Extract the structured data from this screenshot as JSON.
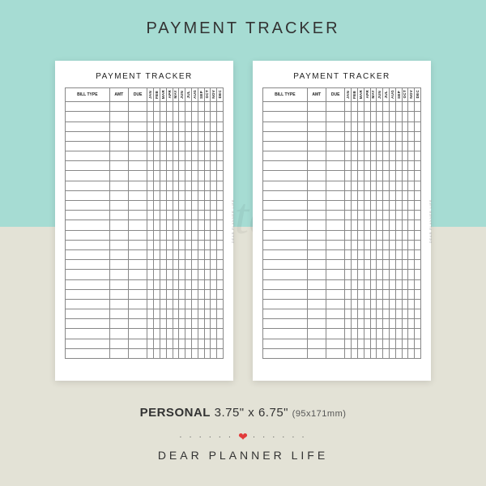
{
  "colors": {
    "bg_top": "#a6dcd3",
    "bg_bottom": "#e3e2d6",
    "card_bg": "#ffffff",
    "grid_line": "#888888",
    "text_dark": "#333333",
    "watermark": "rgba(0,0,0,0.05)",
    "heart": "#e23b3b"
  },
  "title": "PAYMENT TRACKER",
  "title_fontsize": 20,
  "card": {
    "title": "PAYMENT TRACKER",
    "columns_main": [
      "BILL TYPE",
      "AMT",
      "DUE"
    ],
    "columns_months": [
      "JAN",
      "FEB",
      "MAR",
      "APR",
      "MAY",
      "JUN",
      "JUL",
      "AUG",
      "SEP",
      "OCT",
      "NOV",
      "DEC"
    ],
    "col_widths_main_pct": [
      28,
      12,
      12
    ],
    "col_width_month_pct": 4,
    "row_count": 26,
    "side_brand": "DEAR PLANNER LIFE"
  },
  "watermark": "printable",
  "footer": {
    "size_label": "PERSONAL",
    "size_inches": "3.75\" x 6.75\"",
    "size_mm": "(95x171mm)",
    "brand": "DEAR PLANNER LIFE"
  }
}
